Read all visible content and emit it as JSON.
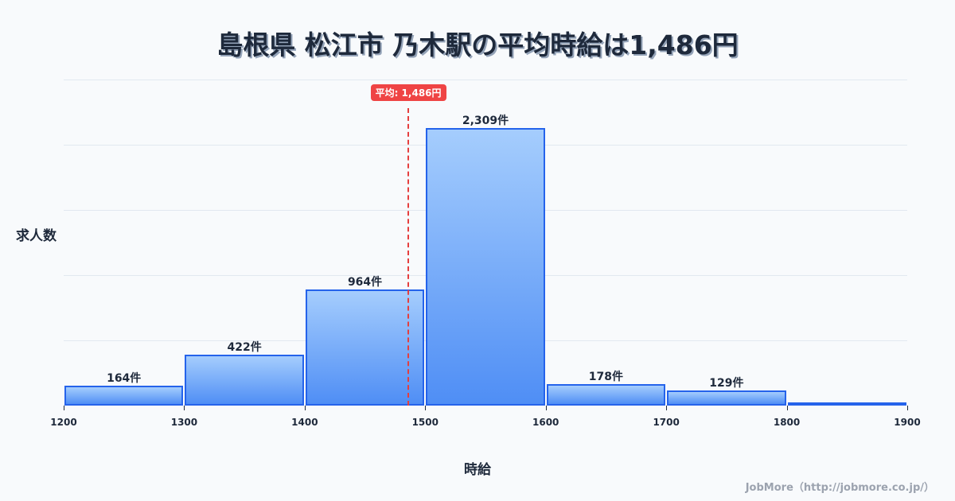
{
  "title": "島根県 松江市 乃木駅の平均時給は1,486円",
  "footer": "JobMore（http://jobmore.co.jp/）",
  "chart_data": {
    "type": "bar",
    "title": "島根県 松江市 乃木駅の平均時給は1,486円",
    "xlabel": "時給",
    "ylabel": "求人数",
    "bins": [
      [
        1200,
        1300
      ],
      [
        1300,
        1400
      ],
      [
        1400,
        1500
      ],
      [
        1500,
        1600
      ],
      [
        1600,
        1700
      ],
      [
        1700,
        1800
      ],
      [
        1800,
        1900
      ]
    ],
    "categories": [
      "1200-1300",
      "1300-1400",
      "1400-1500",
      "1500-1600",
      "1600-1700",
      "1700-1800",
      "1800-1900"
    ],
    "values": [
      164,
      422,
      964,
      2309,
      178,
      129,
      25
    ],
    "bar_labels": [
      "164件",
      "422件",
      "964件",
      "2,309件",
      "178件",
      "129件",
      ""
    ],
    "x_ticks": [
      "1200",
      "1300",
      "1400",
      "1500",
      "1600",
      "1700",
      "1800",
      "1900"
    ],
    "xlim": [
      1200,
      1900
    ],
    "ylim": [
      0,
      2713
    ],
    "grid": true,
    "average": {
      "value": 1486,
      "label": "平均: 1,486円",
      "color": "#ef4444"
    },
    "bar_color": "#60a5fa",
    "bar_border": "#2563eb"
  }
}
